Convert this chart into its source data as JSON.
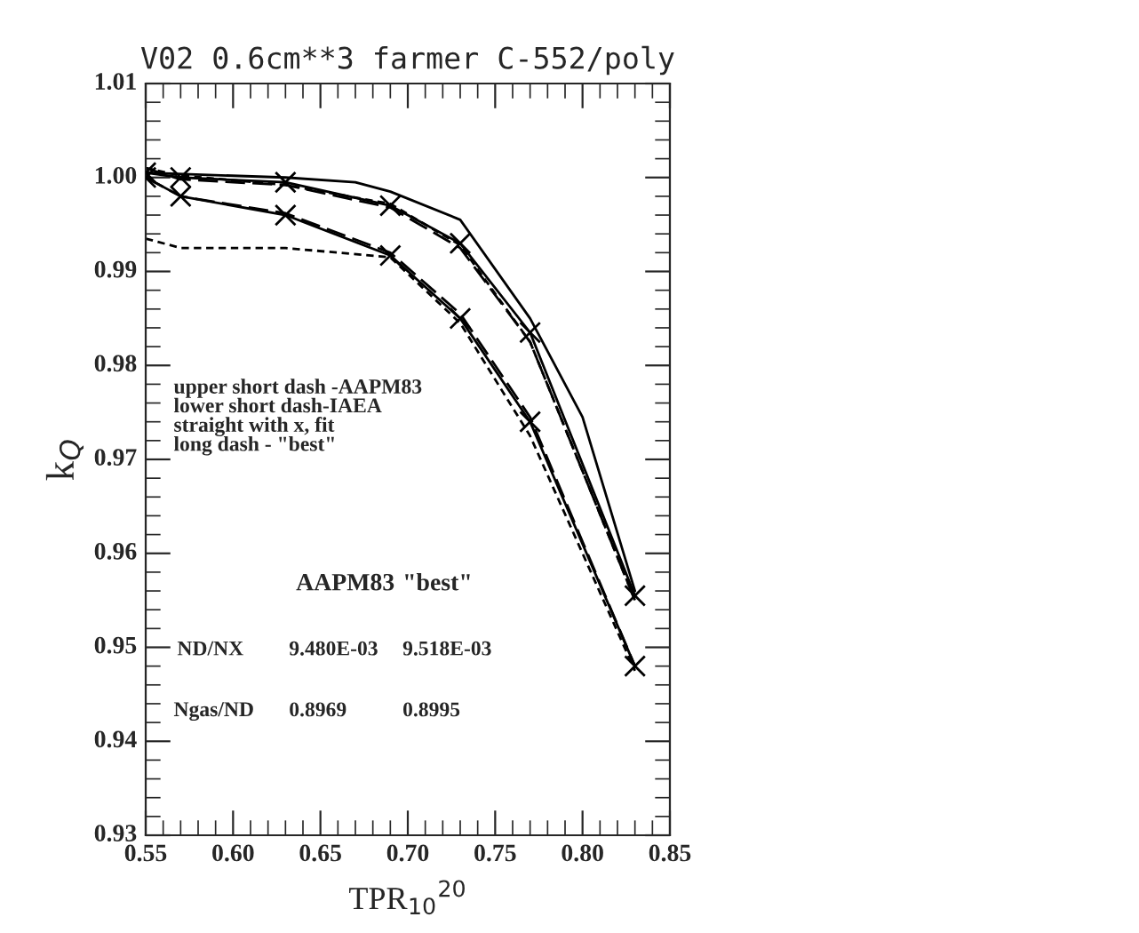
{
  "chart_data": {
    "type": "line",
    "title": "V02 0.6cm**3 farmer C-552/poly",
    "xlabel": "TPR$_{10}$$^{20}$",
    "ylabel": "k$_{Q}$",
    "xlim": [
      0.55,
      0.85
    ],
    "ylim": [
      0.93,
      1.01
    ],
    "xticks": [
      {
        "value": 0.55,
        "label": "0.55"
      },
      {
        "value": 0.6,
        "label": "0.60"
      },
      {
        "value": 0.65,
        "label": "0.65"
      },
      {
        "value": 0.7,
        "label": "0.70"
      },
      {
        "value": 0.75,
        "label": "0.75"
      },
      {
        "value": 0.8,
        "label": "0.80"
      },
      {
        "value": 0.85,
        "label": "0.85"
      }
    ],
    "yticks": [
      {
        "value": 0.93,
        "label": "0.93"
      },
      {
        "value": 0.94,
        "label": "0.94"
      },
      {
        "value": 0.95,
        "label": "0.95"
      },
      {
        "value": 0.96,
        "label": "0.96"
      },
      {
        "value": 0.97,
        "label": "0.97"
      },
      {
        "value": 0.98,
        "label": "0.98"
      },
      {
        "value": 0.99,
        "label": "0.99"
      },
      {
        "value": 1.0,
        "label": "1.00"
      },
      {
        "value": 1.01,
        "label": "1.01"
      }
    ],
    "grid": false,
    "legend": false,
    "series": [
      {
        "color": "#000000",
        "x": [
          0.55,
          0.57,
          0.63,
          0.69,
          0.73,
          0.77,
          0.83
        ],
        "values": [
          1.0005,
          1.0,
          0.9995,
          0.997,
          0.993,
          0.9835,
          0.9555
        ],
        "marker": "cross",
        "line_style": "solid"
      },
      {
        "color": "#000000",
        "x": [
          0.55,
          0.63,
          0.67,
          0.69,
          0.73,
          0.77,
          0.8,
          0.83
        ],
        "values": [
          1.0005,
          1.0,
          0.9995,
          0.9985,
          0.9955,
          0.985,
          0.9745,
          0.956
        ],
        "marker": "none",
        "line_style": "solid"
      },
      {
        "color": "#000000",
        "x": [
          0.55,
          0.57,
          0.63,
          0.69,
          0.73,
          0.77,
          0.83
        ],
        "values": [
          1.001,
          1.0002,
          0.9992,
          0.9972,
          0.9928,
          0.9825,
          0.955
        ],
        "marker": "none",
        "line_style": "dotted"
      },
      {
        "color": "#000000",
        "x": [
          0.55,
          0.57,
          0.63,
          0.69,
          0.73,
          0.77,
          0.83
        ],
        "values": [
          1.0,
          0.998,
          0.996,
          0.9917,
          0.985,
          0.974,
          0.948
        ],
        "marker": "cross",
        "line_style": "solid"
      },
      {
        "color": "#000000",
        "x": [
          0.55,
          0.57,
          0.63,
          0.69,
          0.73,
          0.77,
          0.83
        ],
        "values": [
          0.9935,
          0.9925,
          0.9925,
          0.9915,
          0.9845,
          0.9725,
          0.9475
        ],
        "marker": "none",
        "line_style": "dotted"
      },
      {
        "color": "#000000",
        "x": [
          0.55,
          0.57,
          0.63,
          0.69,
          0.73,
          0.77,
          0.83
        ],
        "values": [
          1.001,
          0.9998,
          0.9992,
          0.9968,
          0.9925,
          0.9825,
          0.955
        ],
        "marker": "none",
        "line_style": "dashed"
      },
      {
        "color": "#000000",
        "x": [
          0.55,
          0.57,
          0.63,
          0.69,
          0.73,
          0.77,
          0.83
        ],
        "values": [
          1.0,
          0.998,
          0.9962,
          0.992,
          0.9855,
          0.9745,
          0.948
        ],
        "marker": "none",
        "line_style": "dashed"
      }
    ],
    "annotations": [
      "upper short dash -AAPM83\nlower short dash-IAEA\nstraight with x, fit\nlong dash - \"best\"",
      "AAPM83",
      "\"best\"",
      "ND/NX",
      "9.480E-03",
      "9.518E-03",
      "Ngas/ND",
      "0.8969",
      "0.8995"
    ]
  }
}
